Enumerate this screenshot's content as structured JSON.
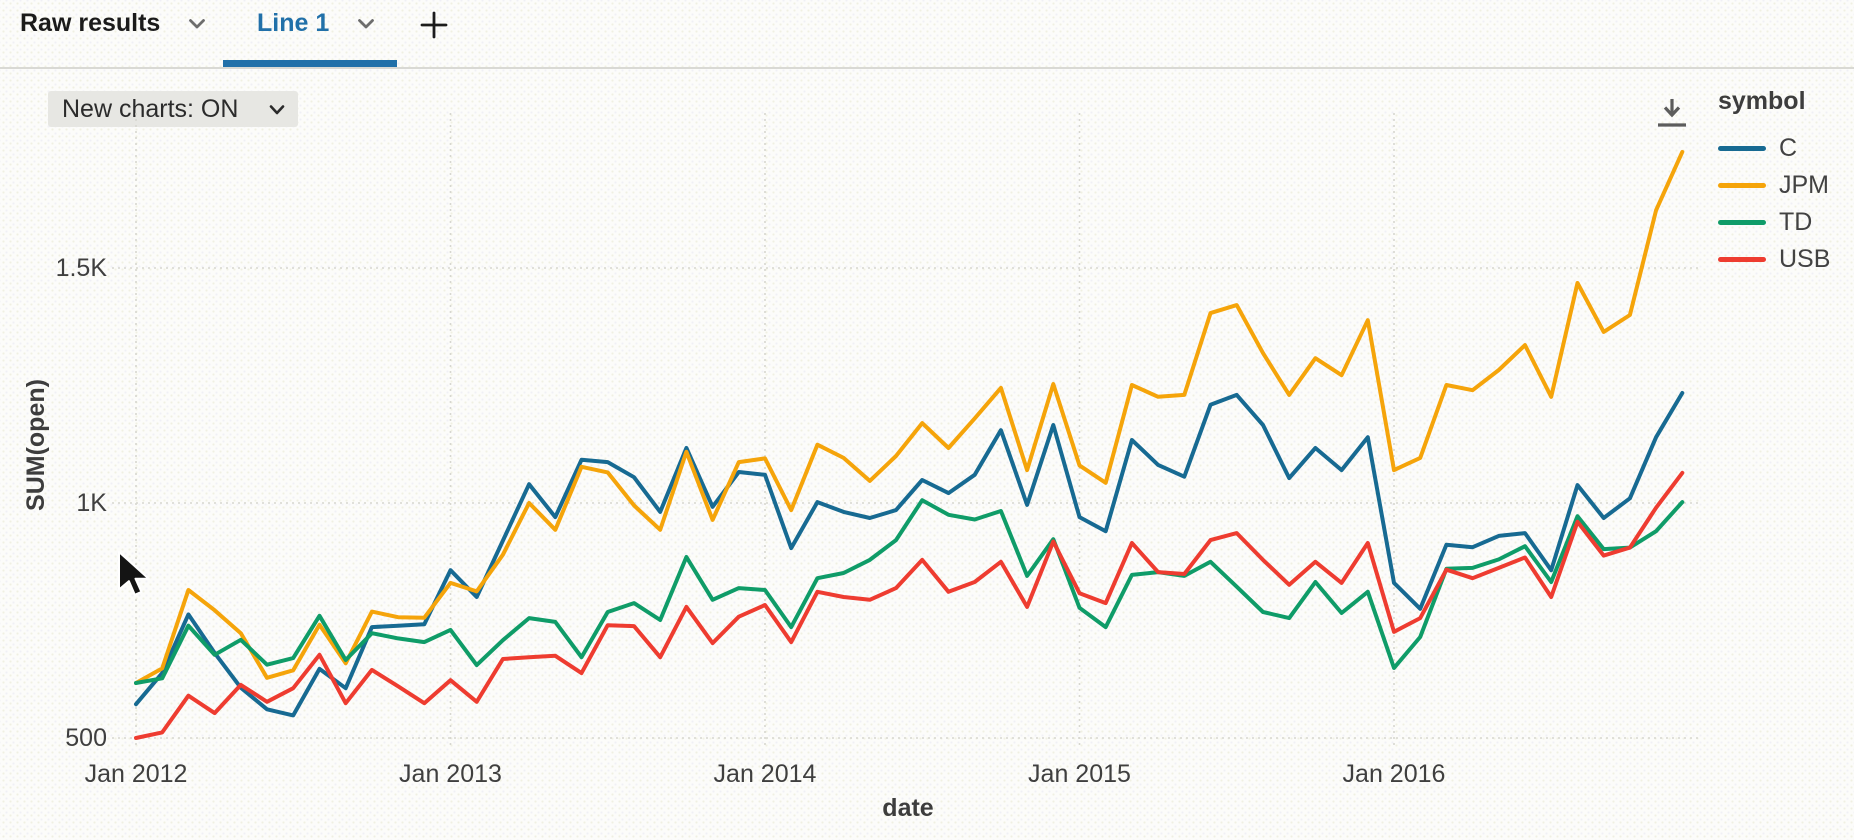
{
  "tabs": {
    "raw_results": {
      "label": "Raw results"
    },
    "line_1": {
      "label": "Line 1",
      "active": true
    }
  },
  "toolbar": {
    "new_charts_label": "New charts: ON"
  },
  "icons": {
    "tab_dropdown": "chevron-down",
    "add_chart": "plus",
    "download": "download-arrow",
    "pointer": "mouse-arrow-cursor"
  },
  "legend": {
    "title": "symbol"
  },
  "colors": {
    "active_tab": "#2170a9",
    "grid": "#d7d7d0",
    "tick_text": "#3f3f3f"
  },
  "chart_data": {
    "type": "line",
    "title": "",
    "xlabel": "date",
    "ylabel": "SUM(open)",
    "grid": "dotted",
    "legend_position": "right",
    "ylim": [
      450,
      1800
    ],
    "y_ticks": [
      {
        "value": 500,
        "label": "500"
      },
      {
        "value": 1000,
        "label": "1K"
      },
      {
        "value": 1500,
        "label": "1.5K"
      }
    ],
    "x_ticks": [
      {
        "month_index": 0,
        "label": "Jan 2012"
      },
      {
        "month_index": 12,
        "label": "Jan 2013"
      },
      {
        "month_index": 24,
        "label": "Jan 2014"
      },
      {
        "month_index": 36,
        "label": "Jan 2015"
      },
      {
        "month_index": 48,
        "label": "Jan 2016"
      }
    ],
    "months": [
      "2012-01",
      "2012-02",
      "2012-03",
      "2012-04",
      "2012-05",
      "2012-06",
      "2012-07",
      "2012-08",
      "2012-09",
      "2012-10",
      "2012-11",
      "2012-12",
      "2013-01",
      "2013-02",
      "2013-03",
      "2013-04",
      "2013-05",
      "2013-06",
      "2013-07",
      "2013-08",
      "2013-09",
      "2013-10",
      "2013-11",
      "2013-12",
      "2014-01",
      "2014-02",
      "2014-03",
      "2014-04",
      "2014-05",
      "2014-06",
      "2014-07",
      "2014-08",
      "2014-09",
      "2014-10",
      "2014-11",
      "2014-12",
      "2015-01",
      "2015-02",
      "2015-03",
      "2015-04",
      "2015-05",
      "2015-06",
      "2015-07",
      "2015-08",
      "2015-09",
      "2015-10",
      "2015-11",
      "2015-12",
      "2016-01",
      "2016-02",
      "2016-03",
      "2016-04",
      "2016-05",
      "2016-06",
      "2016-07",
      "2016-08",
      "2016-09",
      "2016-10",
      "2016-11",
      "2016-12"
    ],
    "series": [
      {
        "name": "C",
        "color": "#176a92",
        "values": [
          572,
          638,
          763,
          681,
          607,
          561,
          548,
          647,
          606,
          736,
          739,
          742,
          857,
          800,
          920,
          1040,
          970,
          1092,
          1087,
          1055,
          981,
          1117,
          992,
          1066,
          1060,
          904,
          1002,
          981,
          968,
          985,
          1049,
          1021,
          1060,
          1155,
          996,
          1166,
          970,
          940,
          1134,
          1081,
          1056,
          1209,
          1230,
          1166,
          1053,
          1117,
          1070,
          1140,
          830,
          775,
          911,
          906,
          930,
          936,
          857,
          1038,
          968,
          1010,
          1140,
          1234
        ]
      },
      {
        "name": "JPM",
        "color": "#f5a40a",
        "values": [
          617,
          648,
          815,
          772,
          723,
          628,
          644,
          741,
          659,
          769,
          757,
          756,
          830,
          812,
          890,
          1000,
          943,
          1077,
          1065,
          995,
          943,
          1109,
          964,
          1087,
          1095,
          985,
          1124,
          1096,
          1047,
          1100,
          1170,
          1117,
          1180,
          1245,
          1070,
          1253,
          1080,
          1043,
          1251,
          1226,
          1230,
          1404,
          1421,
          1319,
          1230,
          1308,
          1272,
          1389,
          1070,
          1096,
          1251,
          1240,
          1283,
          1336,
          1226,
          1468,
          1364,
          1400,
          1623,
          1747
        ]
      },
      {
        "name": "TD",
        "color": "#0f9c68",
        "values": [
          617,
          627,
          739,
          677,
          709,
          656,
          670,
          760,
          666,
          723,
          712,
          704,
          730,
          655,
          708,
          755,
          747,
          672,
          768,
          787,
          751,
          885,
          794,
          819,
          815,
          736,
          840,
          851,
          879,
          921,
          1006,
          975,
          965,
          983,
          845,
          923,
          777,
          736,
          847,
          853,
          845,
          875,
          822,
          768,
          755,
          832,
          766,
          811,
          649,
          715,
          860,
          862,
          880,
          908,
          832,
          972,
          902,
          905,
          940,
          1002
        ]
      },
      {
        "name": "USB",
        "color": "#ee3c30",
        "values": [
          500,
          512,
          590,
          553,
          613,
          577,
          606,
          677,
          574,
          645,
          610,
          574,
          623,
          577,
          668,
          672,
          675,
          638,
          740,
          738,
          672,
          779,
          702,
          758,
          783,
          704,
          811,
          800,
          794,
          819,
          879,
          811,
          832,
          875,
          779,
          918,
          808,
          787,
          915,
          853,
          849,
          921,
          936,
          879,
          826,
          875,
          830,
          915,
          726,
          755,
          858,
          840,
          862,
          884,
          800,
          960,
          888,
          905,
          990,
          1064
        ]
      }
    ]
  }
}
